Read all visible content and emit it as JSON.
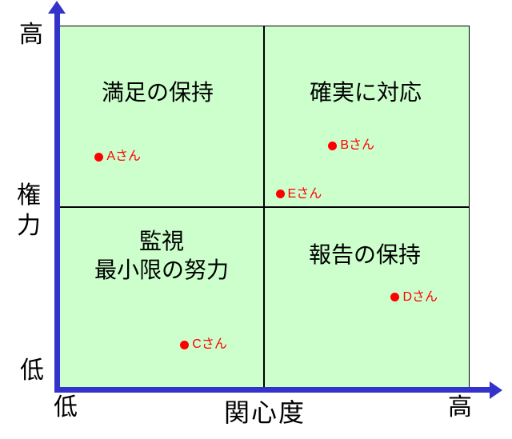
{
  "colors": {
    "plot_background": "#ccffcc",
    "axis_blue": "#3333cc",
    "point_red": "#ff0000",
    "grid_line_black": "#000000",
    "text_black": "#000000"
  },
  "chart_data": {
    "type": "scatter",
    "title": "",
    "xlabel": "関心度",
    "ylabel": "権力",
    "x_axis": {
      "title": "関心度",
      "low_label": "低",
      "high_label": "高",
      "range": [
        0,
        1
      ]
    },
    "y_axis": {
      "title": "権力",
      "low_label": "低",
      "high_label": "高",
      "range": [
        0,
        1
      ]
    },
    "grid": "2x2 quadrants",
    "legend_position": "none",
    "axes": {
      "y": {
        "high": "高",
        "title": "権力",
        "low": "低"
      },
      "x": {
        "low": "低",
        "title": "関心度",
        "high": "高"
      }
    },
    "quadrants": {
      "top_left": {
        "label": "満足の保持"
      },
      "top_right": {
        "label": "確実に対応"
      },
      "bottom_left": {
        "line1": "監視",
        "line2": "最小限の努力"
      },
      "bottom_right": {
        "label": "報告の保持"
      }
    },
    "points": [
      {
        "id": "A",
        "label": "Aさん",
        "x": 0.099,
        "y": 0.637
      },
      {
        "id": "B",
        "label": "Bさん",
        "x": 0.667,
        "y": 0.668
      },
      {
        "id": "E",
        "label": "Eさん",
        "x": 0.539,
        "y": 0.535
      },
      {
        "id": "C",
        "label": "Cさん",
        "x": 0.307,
        "y": 0.119
      },
      {
        "id": "D",
        "label": "Dさん",
        "x": 0.819,
        "y": 0.25
      }
    ]
  }
}
